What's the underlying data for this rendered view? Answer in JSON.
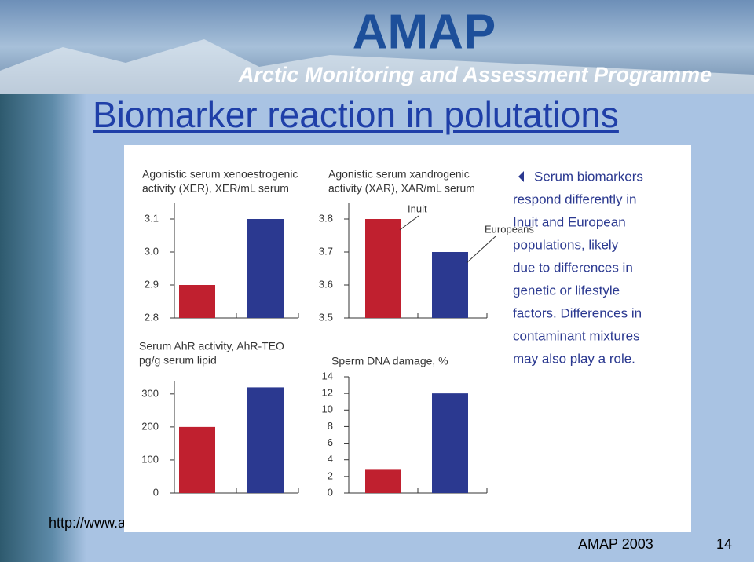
{
  "header": {
    "logo": "AMAP",
    "subtitle": "Arctic Monitoring and Assessment Programme"
  },
  "title": "Biomarker reaction in polutations",
  "chart_data": [
    {
      "type": "bar",
      "title_lines": [
        "Agonistic serum xenoestrogenic",
        "activity (XER), XER/mL serum"
      ],
      "values": [
        2.9,
        3.1
      ],
      "colors": [
        "#c0202f",
        "#2b3990"
      ],
      "ylim": [
        2.8,
        3.15
      ],
      "yticks": [
        2.8,
        2.9,
        {
          "value": 3,
          "label": "3.0"
        },
        3.1
      ]
    },
    {
      "type": "bar",
      "title_lines": [
        "Agonistic serum xandrogenic",
        "activity (XAR), XAR/mL serum"
      ],
      "values": [
        3.8,
        3.7
      ],
      "colors": [
        "#c0202f",
        "#2b3990"
      ],
      "annotations": [
        "Inuit",
        "Europeans"
      ],
      "ylim": [
        3.5,
        3.85
      ],
      "yticks": [
        3.5,
        3.6,
        3.7,
        3.8
      ]
    },
    {
      "type": "bar",
      "title_lines": [
        "Serum AhR activity, AhR-TEO",
        "pg/g serum lipid"
      ],
      "values": [
        200,
        320
      ],
      "colors": [
        "#c0202f",
        "#2b3990"
      ],
      "ylim": [
        0,
        340
      ],
      "yticks": [
        0,
        100,
        200,
        300
      ]
    },
    {
      "type": "bar",
      "title_lines": [
        "Sperm DNA damage, %"
      ],
      "values": [
        2.8,
        12
      ],
      "colors": [
        "#c0202f",
        "#2b3990"
      ],
      "ylim": [
        0,
        14
      ],
      "yticks": [
        0,
        2,
        4,
        6,
        8,
        10,
        12,
        14
      ]
    }
  ],
  "side_text": [
    "Serum biomarkers",
    "respond differently in",
    "Inuit and European",
    "populations, likely",
    "due to differences in",
    "genetic or lifestyle",
    "factors. Differences in",
    "contaminant mixtures",
    "may also play a role."
  ],
  "url": "http://www.a",
  "footer": {
    "source": "AMAP 2003",
    "page": "14"
  }
}
